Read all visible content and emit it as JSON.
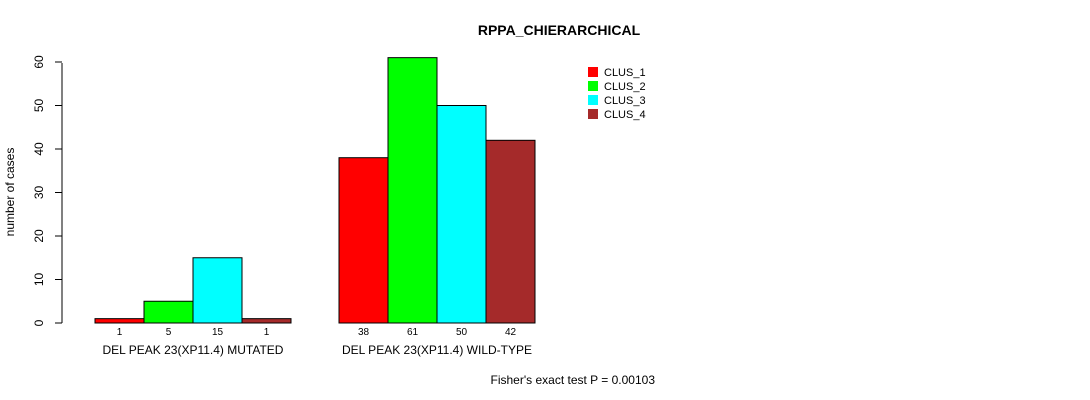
{
  "chart_data": {
    "type": "bar",
    "title": "RPPA_CHIERARCHICAL",
    "ylabel": "number of cases",
    "xlabel": "",
    "ylim": [
      0,
      60
    ],
    "yticks": [
      0,
      10,
      20,
      30,
      40,
      50,
      60
    ],
    "groups": [
      "DEL PEAK 23(XP11.4) MUTATED",
      "DEL PEAK 23(XP11.4) WILD-TYPE"
    ],
    "series": [
      {
        "name": "CLUS_1",
        "color": "#ff0000",
        "values": [
          1,
          38
        ]
      },
      {
        "name": "CLUS_2",
        "color": "#00ff00",
        "values": [
          5,
          61
        ]
      },
      {
        "name": "CLUS_3",
        "color": "#00ffff",
        "values": [
          15,
          50
        ]
      },
      {
        "name": "CLUS_4",
        "color": "#a52a2a",
        "values": [
          1,
          42
        ]
      }
    ],
    "legend_position": "top-right",
    "footnote": "Fisher's exact test P = 0.00103"
  }
}
